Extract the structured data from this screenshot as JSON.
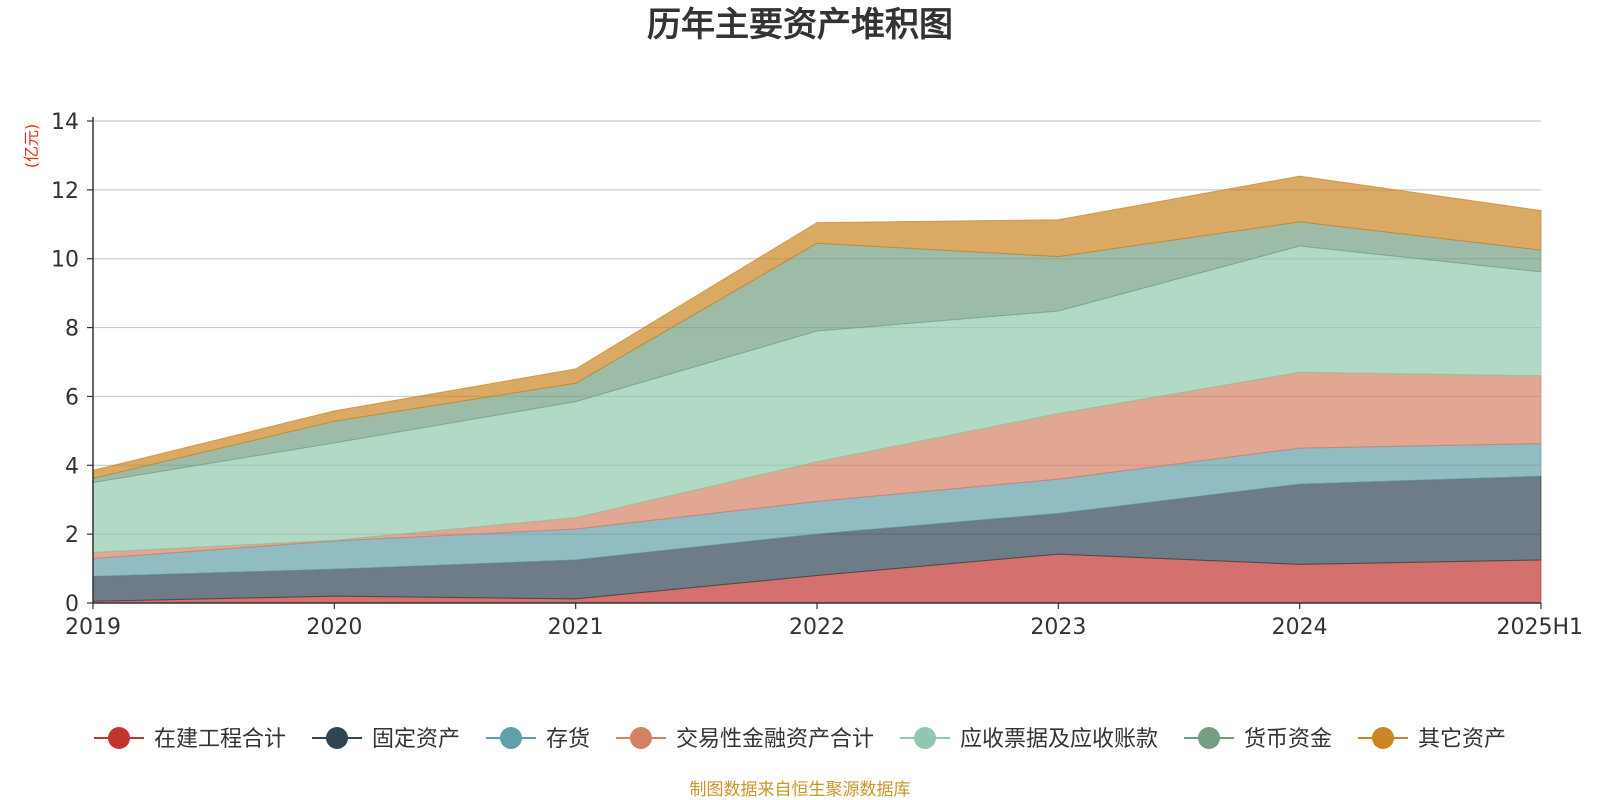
{
  "chart_data": {
    "type": "area",
    "stacked": true,
    "title": "历年主要资产堆积图",
    "unit_label": "(亿元)",
    "source_note": "制图数据来自恒生聚源数据库",
    "x": [
      "2019",
      "2020",
      "2021",
      "2022",
      "2023",
      "2024",
      "2025H1"
    ],
    "ylim": [
      0,
      14
    ],
    "yticks": [
      0,
      2,
      4,
      6,
      8,
      10,
      12,
      14
    ],
    "grid": true,
    "legend_position": "bottom",
    "series": [
      {
        "name": "在建工程合计",
        "color": "#c23531",
        "values": [
          0.05,
          0.2,
          0.12,
          0.8,
          1.42,
          1.12,
          1.25
        ]
      },
      {
        "name": "固定资产",
        "color": "#2f4554",
        "values": [
          0.72,
          0.78,
          1.13,
          1.2,
          1.18,
          2.33,
          2.43
        ]
      },
      {
        "name": "存货",
        "color": "#61a0a8",
        "values": [
          0.52,
          0.82,
          0.9,
          0.95,
          1.0,
          1.05,
          0.95
        ]
      },
      {
        "name": "交易性金融资产合计",
        "color": "#d48265",
        "values": [
          0.18,
          0.02,
          0.33,
          1.15,
          1.9,
          2.2,
          1.97
        ]
      },
      {
        "name": "应收票据及应收账款",
        "color": "#91c7ae",
        "values": [
          2.03,
          2.83,
          3.37,
          3.8,
          2.98,
          3.67,
          3.02
        ]
      },
      {
        "name": "货币资金",
        "color": "#749f83",
        "values": [
          0.12,
          0.63,
          0.53,
          2.55,
          1.58,
          0.7,
          0.63
        ]
      },
      {
        "name": "其它资产",
        "color": "#ca8622",
        "values": [
          0.23,
          0.3,
          0.42,
          0.6,
          1.07,
          1.33,
          1.15
        ]
      }
    ]
  }
}
